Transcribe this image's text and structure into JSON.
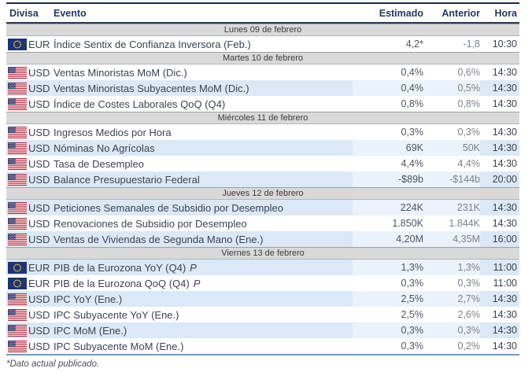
{
  "header": {
    "columns": [
      "Divisa",
      "Evento",
      "Estimado",
      "Anterior",
      "Hora"
    ]
  },
  "colors": {
    "table_top_border": "#1c2b49",
    "header_underline": "#243a5e",
    "header_text": "#243a5e",
    "date_row_bg": "#d9d9d9",
    "shaded_row_bg": "#dbe8f5",
    "shaded_value_bg": "#eaf2fa",
    "table_bottom_border": "#6f9bc9",
    "eu_flag_blue": "#1d3479",
    "eu_flag_gold": "#f7c51e",
    "us_flag_red": "#b22234",
    "us_flag_blue": "#3c3b6e"
  },
  "table": {
    "rows": [
      {
        "type": "date",
        "label": "Lunes 09 de febrero"
      },
      {
        "type": "event",
        "flag": "eu",
        "currency": "EUR",
        "event": "Índice Sentix de Confianza Inversora (Feb.)",
        "estimado": "4,2*",
        "anterior": "-1,8",
        "hora": "10:30",
        "shaded": false
      },
      {
        "type": "date",
        "label": "Martes 10 de febrero"
      },
      {
        "type": "event",
        "flag": "us",
        "currency": "USD",
        "event": "Ventas Minoristas MoM (Dic.)",
        "estimado": "0,4%",
        "anterior": "0,6%",
        "hora": "14:30",
        "shaded": false
      },
      {
        "type": "event",
        "flag": "us",
        "currency": "USD",
        "event": "Ventas Minoristas Subyacentes MoM (Dic.)",
        "estimado": "0,4%",
        "anterior": "0,5%",
        "hora": "14:30",
        "shaded": true
      },
      {
        "type": "event",
        "flag": "us",
        "currency": "USD",
        "event": "Índice de Costes Laborales QoQ (Q4)",
        "estimado": "0,8%",
        "anterior": "0,8%",
        "hora": "14:30",
        "shaded": false
      },
      {
        "type": "date",
        "label": "Miércoles 11 de febrero"
      },
      {
        "type": "event",
        "flag": "us",
        "currency": "USD",
        "event": "Ingresos Medios por Hora",
        "estimado": "0,3%",
        "anterior": "0,3%",
        "hora": "14:30",
        "shaded": false
      },
      {
        "type": "event",
        "flag": "us",
        "currency": "USD",
        "event": "Nóminas No Agrícolas",
        "estimado": "69K",
        "anterior": "50K",
        "hora": "14:30",
        "shaded": true
      },
      {
        "type": "event",
        "flag": "us",
        "currency": "USD",
        "event": "Tasa de Desempleo",
        "estimado": "4,4%",
        "anterior": "4,4%",
        "hora": "14:30",
        "shaded": false
      },
      {
        "type": "event",
        "flag": "us",
        "currency": "USD",
        "event": "Balance Presupuestario Federal",
        "estimado": "-$89b",
        "anterior": "-$144b",
        "hora": "20:00",
        "shaded": true
      },
      {
        "type": "date",
        "label": "Jueves 12 de febrero"
      },
      {
        "type": "event",
        "flag": "us",
        "currency": "USD",
        "event": "Peticiones Semanales de Subsidio por Desempleo",
        "estimado": "224K",
        "anterior": "231K",
        "hora": "14:30",
        "shaded": true
      },
      {
        "type": "event",
        "flag": "us",
        "currency": "USD",
        "event": "Renovaciones de Subsidio por Desempleo",
        "estimado": "1.850K",
        "anterior": "1.844K",
        "hora": "14:30",
        "shaded": false
      },
      {
        "type": "event",
        "flag": "us",
        "currency": "USD",
        "event": "Ventas de Viviendas de Segunda Mano (Ene.)",
        "estimado": "4,20M",
        "anterior": "4,35M",
        "hora": "16:00",
        "shaded": true
      },
      {
        "type": "date",
        "label": "Viernes 13 de febrero"
      },
      {
        "type": "event",
        "flag": "eu",
        "currency": "EUR",
        "event": "PIB de la Eurozona YoY (Q4)",
        "p": "P",
        "estimado": "1,3%",
        "anterior": "1,3%",
        "hora": "11:00",
        "shaded": true
      },
      {
        "type": "event",
        "flag": "eu",
        "currency": "EUR",
        "event": "PIB de la Eurozona QoQ (Q4)",
        "p": "P",
        "estimado": "0,3%",
        "anterior": "0,3%",
        "hora": "11:00",
        "shaded": false
      },
      {
        "type": "event",
        "flag": "us",
        "currency": "USD",
        "event": "IPC YoY (Ene.)",
        "estimado": "2,5%",
        "anterior": "2,7%",
        "hora": "14:30",
        "shaded": true
      },
      {
        "type": "event",
        "flag": "us",
        "currency": "USD",
        "event": "IPC Subyacente YoY (Ene.)",
        "estimado": "2,5%",
        "anterior": "2,6%",
        "hora": "14:30",
        "shaded": false
      },
      {
        "type": "event",
        "flag": "us",
        "currency": "USD",
        "event": "IPC MoM (Ene.)",
        "estimado": "0,3%",
        "anterior": "0,3%",
        "hora": "14:30",
        "shaded": true
      },
      {
        "type": "event",
        "flag": "us",
        "currency": "USD",
        "event": "IPC Subyacente MoM (Ene.)",
        "estimado": "0,3%",
        "anterior": "0,2%",
        "hora": "14:30",
        "shaded": false
      }
    ]
  },
  "footer": {
    "note": "*Dato actual publicado."
  }
}
